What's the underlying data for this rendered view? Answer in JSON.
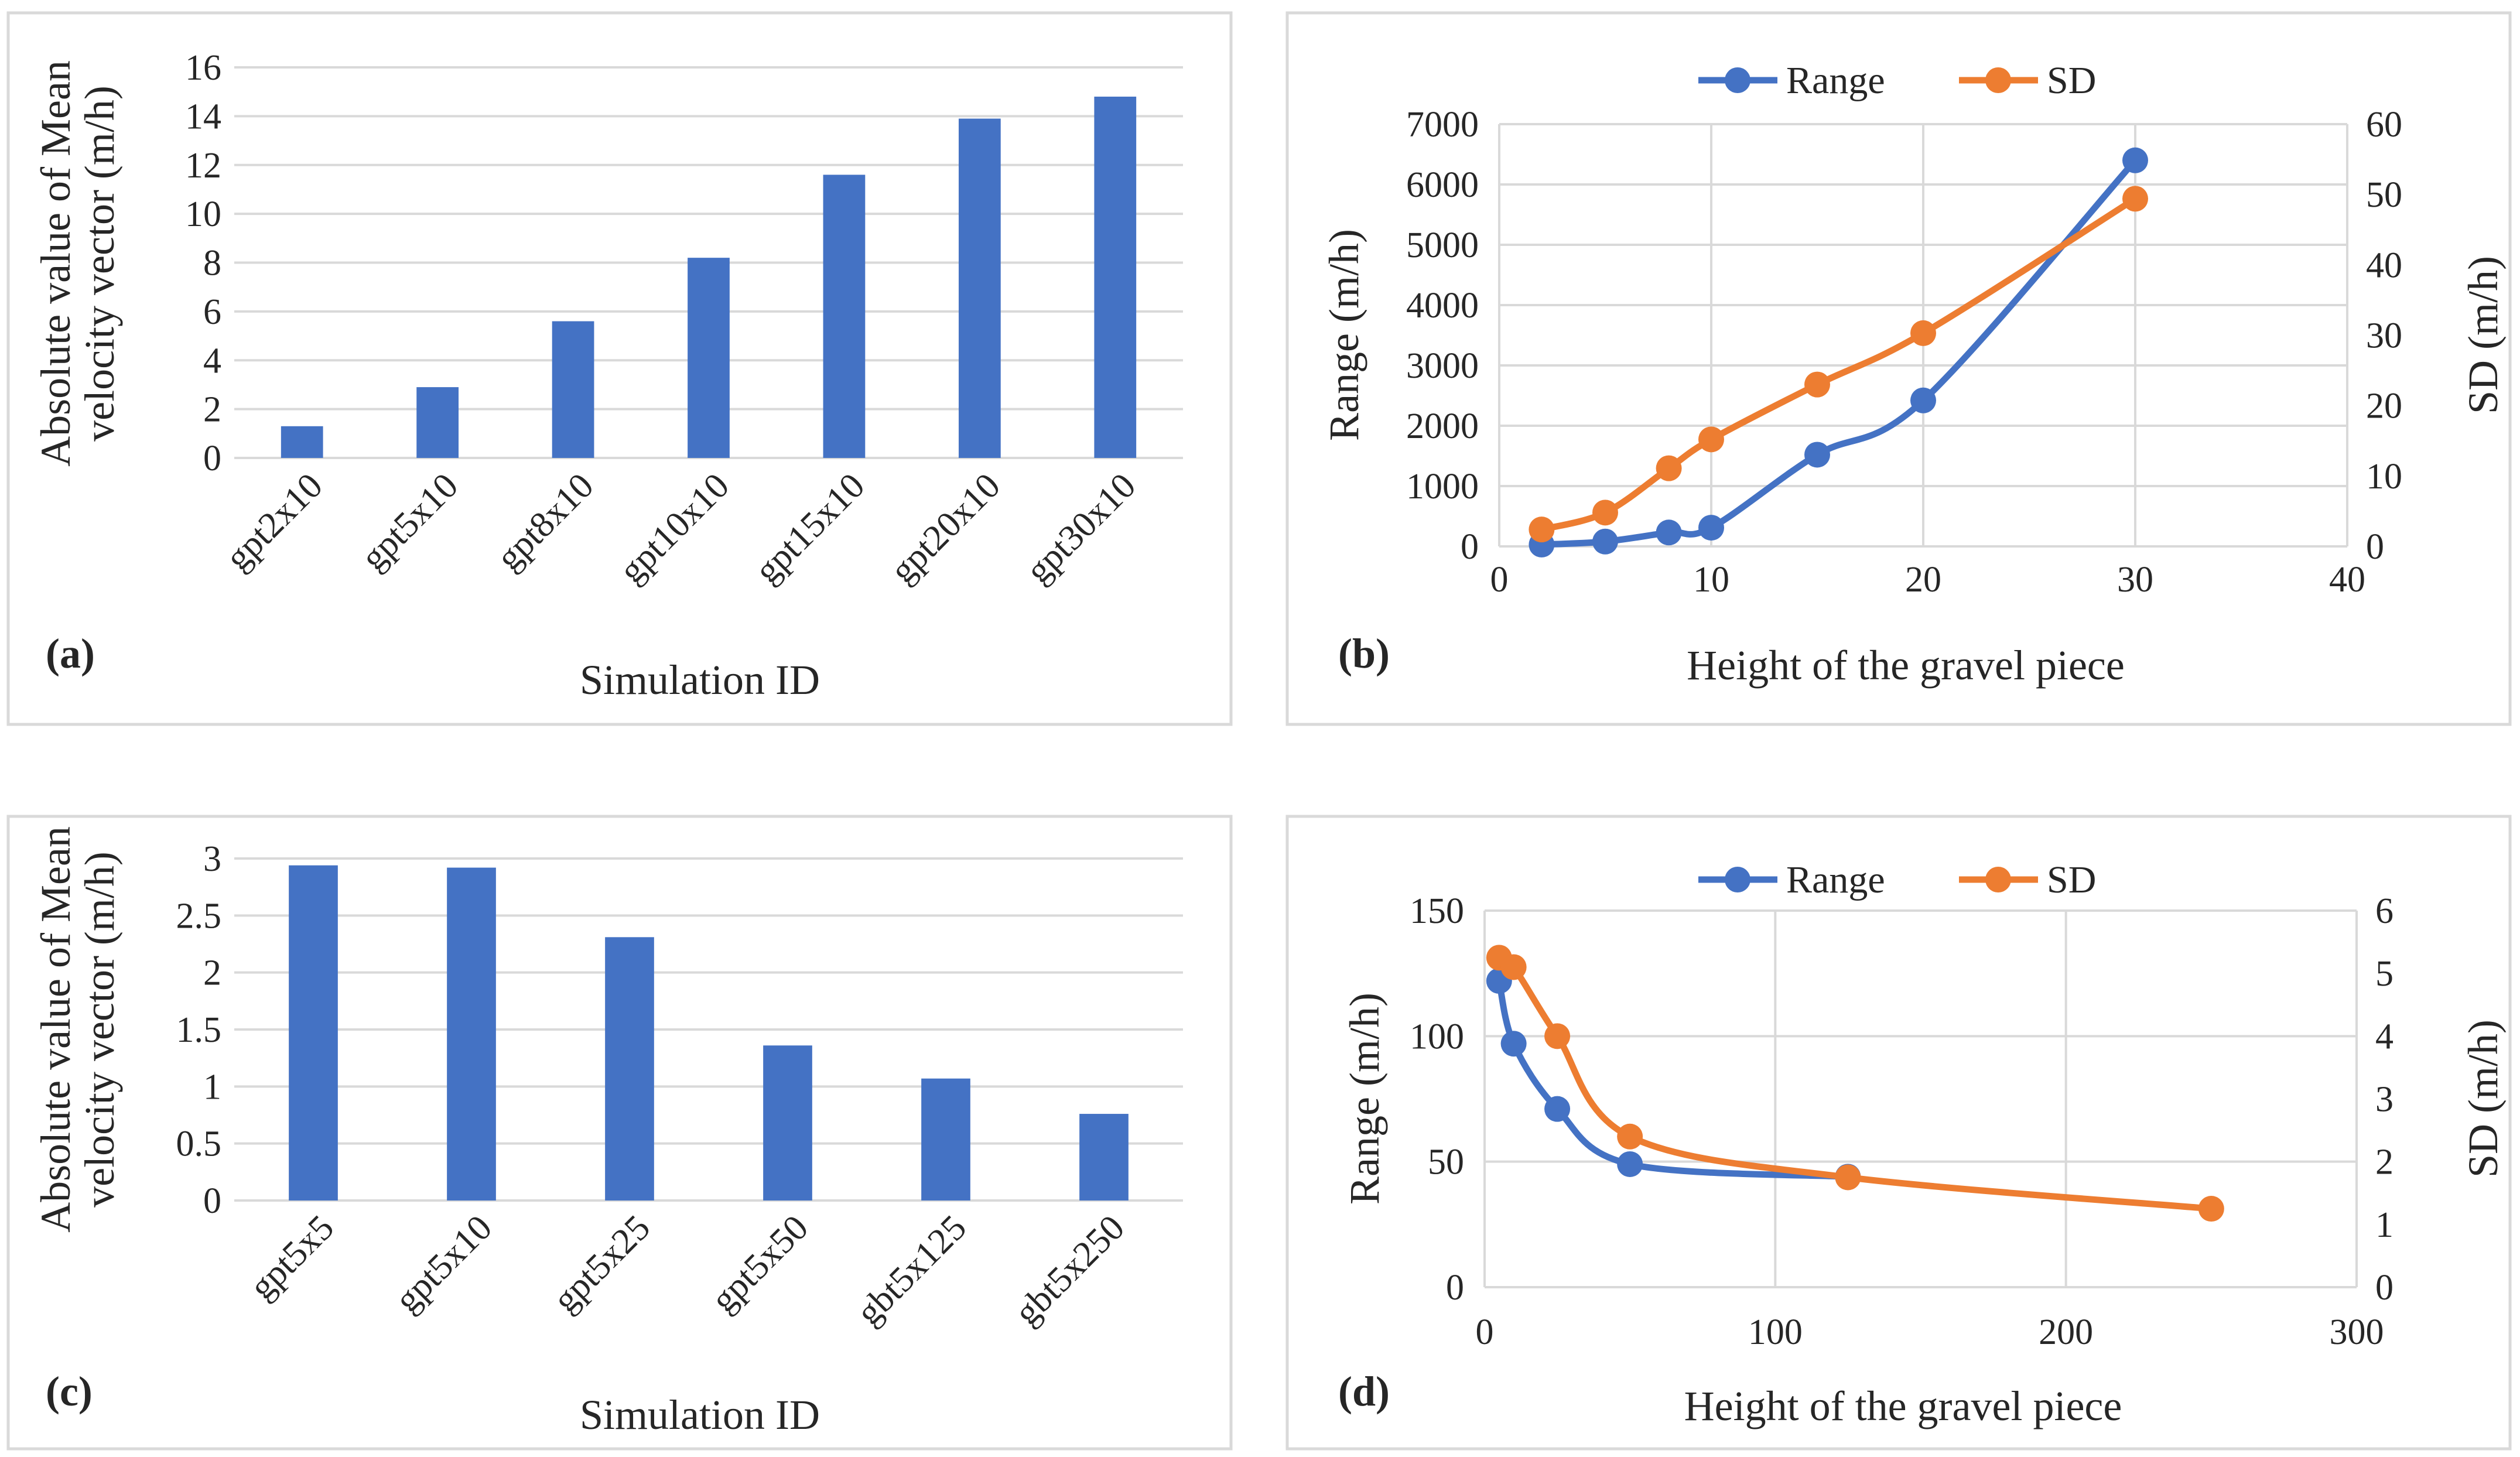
{
  "chart_data": [
    {
      "id": "a",
      "type": "bar",
      "panel_label": "(a)",
      "categories": [
        "gpt2x10",
        "gpt5x10",
        "gpt8x10",
        "gpt10x10",
        "gpt15x10",
        "gpt20x10",
        "gpt30x10"
      ],
      "values": [
        1.3,
        2.9,
        5.6,
        8.2,
        11.6,
        13.9,
        14.8
      ],
      "ylim": [
        0,
        16
      ],
      "yticks": [
        "0",
        "2",
        "4",
        "6",
        "8",
        "10",
        "12",
        "14",
        "16"
      ],
      "ylabel_line1": "Absolute value of Mean",
      "ylabel_line2": "velocity vector (m/h)",
      "xlabel": "Simulation ID",
      "bar_color": "#4472c4"
    },
    {
      "id": "b",
      "type": "line",
      "panel_label": "(b)",
      "xlim": [
        0,
        40
      ],
      "xticks": [
        "0",
        "10",
        "20",
        "30",
        "40"
      ],
      "xlabel": "Height of the gravel piece",
      "ylabel_left": "Range (m/h)",
      "ylabel_right": "SD (m/h)",
      "ylim_left": [
        0,
        7000
      ],
      "ylim_right": [
        0,
        60
      ],
      "yticks_left": [
        "0",
        "1000",
        "2000",
        "3000",
        "4000",
        "5000",
        "6000",
        "7000"
      ],
      "yticks_right": [
        "0",
        "10",
        "20",
        "30",
        "40",
        "50",
        "60"
      ],
      "series": [
        {
          "name": "Range",
          "axis": "left",
          "color": "#4472c4",
          "x": [
            2,
            5,
            8,
            10,
            15,
            20,
            30
          ],
          "values": [
            30,
            80,
            230,
            310,
            1520,
            2420,
            6400
          ]
        },
        {
          "name": "SD",
          "axis": "right",
          "color": "#ed7d31",
          "x": [
            2,
            5,
            8,
            10,
            15,
            20,
            30
          ],
          "values": [
            2.4,
            4.8,
            11.1,
            15.2,
            23.0,
            30.3,
            49.4
          ]
        }
      ]
    },
    {
      "id": "c",
      "type": "bar",
      "panel_label": "(c)",
      "categories": [
        "gpt5x5",
        "gpt5x10",
        "gpt5x25",
        "gpt5x50",
        "gbt5x125",
        "gbt5x250"
      ],
      "values": [
        2.94,
        2.92,
        2.31,
        1.36,
        1.07,
        0.76
      ],
      "ylim": [
        0,
        3
      ],
      "yticks": [
        "0",
        "0.5",
        "1",
        "1.5",
        "2",
        "2.5",
        "3"
      ],
      "ylabel_line1": "Absolute value of Mean",
      "ylabel_line2": "velocity vector (m/h)",
      "xlabel": "Simulation ID",
      "bar_color": "#4472c4"
    },
    {
      "id": "d",
      "type": "line",
      "panel_label": "(d)",
      "xlim": [
        0,
        300
      ],
      "xticks": [
        "0",
        "100",
        "200",
        "300"
      ],
      "xlabel": "Height of the gravel piece",
      "ylabel_left": "Range (m/h)",
      "ylabel_right": "SD (m/h)",
      "ylim_left": [
        0,
        150
      ],
      "ylim_right": [
        0,
        6
      ],
      "yticks_left": [
        "0",
        "50",
        "100",
        "150"
      ],
      "yticks_right": [
        "0",
        "1",
        "2",
        "3",
        "4",
        "5",
        "6"
      ],
      "series": [
        {
          "name": "Range",
          "axis": "left",
          "color": "#4472c4",
          "x": [
            5,
            10,
            25,
            50,
            125
          ],
          "values": [
            122,
            97,
            71,
            49,
            44
          ]
        },
        {
          "name": "SD",
          "axis": "right",
          "color": "#ed7d31",
          "x": [
            5,
            10,
            25,
            50,
            125,
            250
          ],
          "values": [
            5.25,
            5.1,
            4.0,
            2.4,
            1.75,
            1.25
          ]
        }
      ]
    }
  ]
}
